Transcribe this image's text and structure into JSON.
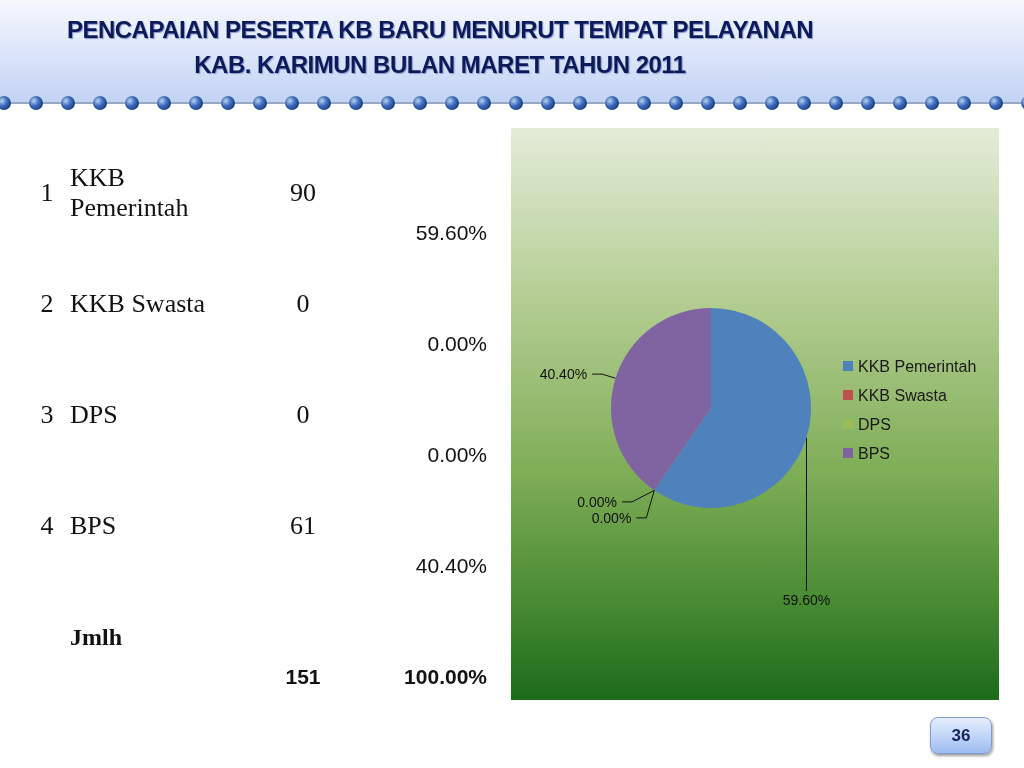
{
  "chart_data": {
    "type": "pie",
    "title": "PENCAPAIAN PESERTA KB BARU MENURUT TEMPAT PELAYANAN\nKAB. KARIMUN BULAN MARET TAHUN 2011",
    "categories": [
      "KKB Pemerintah",
      "KKB Swasta",
      "DPS",
      "BPS"
    ],
    "values": [
      59.6,
      0,
      0,
      40.4
    ],
    "value_labels": [
      "59.60%",
      "0.00%",
      "0.00%",
      "40.40%"
    ],
    "colors": [
      "#4f81bd",
      "#c0504d",
      "#9bbb59",
      "#8064a2"
    ],
    "legend": "right",
    "annotations": [
      "1",
      "90",
      "59.60%",
      "2",
      "0",
      "0.00%",
      "3",
      "0",
      "0.00%",
      "4",
      "61",
      "40.40%",
      "Jmlh",
      "151",
      "100.00%",
      "36"
    ]
  }
}
